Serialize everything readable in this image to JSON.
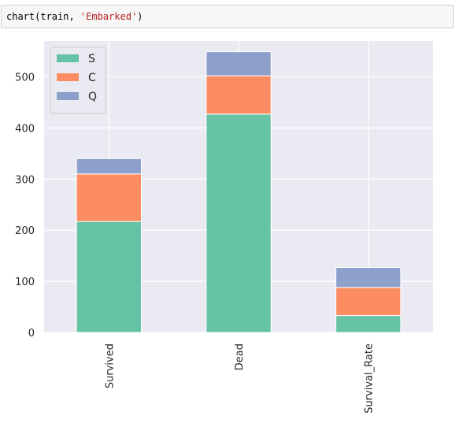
{
  "code_cell": {
    "prefix": "chart(train, ",
    "string_arg": "'Embarked'",
    "suffix": ")"
  },
  "chart_data": {
    "type": "bar",
    "stacked": true,
    "categories": [
      "Survived",
      "Dead",
      "Survival_Rate"
    ],
    "series": [
      {
        "name": "S",
        "color": "#66c2a5",
        "values": [
          217,
          427,
          33
        ]
      },
      {
        "name": "C",
        "color": "#fc8d62",
        "values": [
          93,
          75,
          55
        ]
      },
      {
        "name": "Q",
        "color": "#8da0cb",
        "values": [
          30,
          47,
          39
        ]
      }
    ],
    "y_ticks": [
      0,
      100,
      200,
      300,
      400,
      500
    ],
    "ylim": [
      0,
      570
    ],
    "title": "",
    "xlabel": "",
    "ylabel": "",
    "grid": true,
    "background": "#eaeaf2",
    "legend_position": "top-left"
  }
}
